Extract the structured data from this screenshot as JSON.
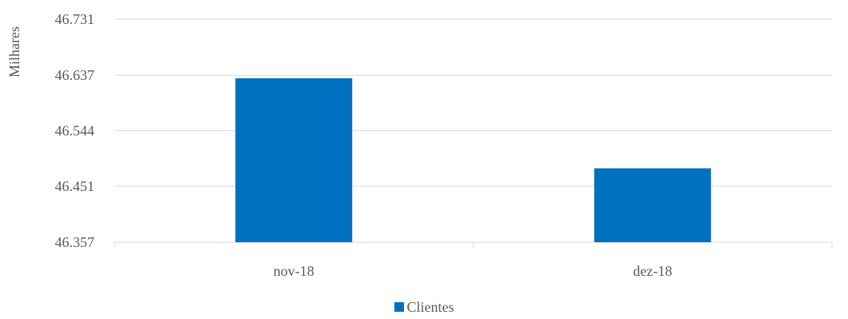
{
  "chart_data": {
    "type": "bar",
    "ylabel": "Milhares",
    "categories": [
      "nov-18",
      "dez-18"
    ],
    "series": [
      {
        "name": "Clientes",
        "values": [
          46.632,
          46.481
        ],
        "color": "#0070C0"
      }
    ],
    "ylim": [
      46.357,
      46.731
    ],
    "yticks": [
      "46.731",
      "46.637",
      "46.544",
      "46.451",
      "46.357"
    ],
    "ytick_values": [
      46.731,
      46.637,
      46.544,
      46.451,
      46.357
    ],
    "grid": true,
    "legend": "bottom"
  }
}
